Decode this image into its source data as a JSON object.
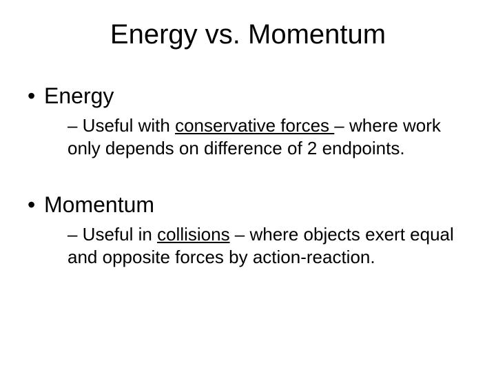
{
  "title": "Energy vs. Momentum",
  "sections": [
    {
      "heading": "Energy",
      "sub_prefix": "– Useful with ",
      "sub_underlined": "conservative forces ",
      "sub_suffix": "– where work only depends on difference of 2 endpoints."
    },
    {
      "heading": "Momentum",
      "sub_prefix": "– Useful in ",
      "sub_underlined": "collisions",
      "sub_suffix": " – where objects exert equal and opposite forces by action-reaction."
    }
  ],
  "colors": {
    "background": "#ffffff",
    "text": "#000000"
  },
  "typography": {
    "title_fontsize": 40,
    "level1_fontsize": 32,
    "level2_fontsize": 26,
    "font_family": "Arial"
  }
}
